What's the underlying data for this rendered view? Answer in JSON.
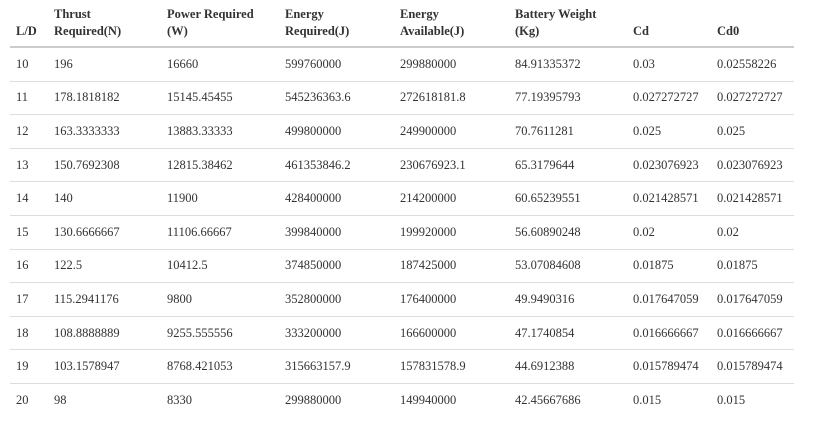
{
  "table": {
    "headers": [
      [
        "",
        "L/D"
      ],
      [
        "Thrust",
        "Required(N)"
      ],
      [
        "Power Required",
        "(W)"
      ],
      [
        "Energy",
        "Required(J)"
      ],
      [
        "Energy",
        "Available(J)"
      ],
      [
        "Battery Weight",
        "(Kg)"
      ],
      [
        "",
        "Cd"
      ],
      [
        "",
        "Cd0"
      ]
    ],
    "rows": [
      [
        "10",
        "196",
        "16660",
        "599760000",
        "299880000",
        "84.91335372",
        "0.03",
        "0.02558226"
      ],
      [
        "11",
        "178.1818182",
        "15145.45455",
        "545236363.6",
        "272618181.8",
        "77.19395793",
        "0.027272727",
        "0.027272727"
      ],
      [
        "12",
        "163.3333333",
        "13883.33333",
        "499800000",
        "249900000",
        "70.7611281",
        "0.025",
        "0.025"
      ],
      [
        "13",
        "150.7692308",
        "12815.38462",
        "461353846.2",
        "230676923.1",
        "65.3179644",
        "0.023076923",
        "0.023076923"
      ],
      [
        "14",
        "140",
        "11900",
        "428400000",
        "214200000",
        "60.65239551",
        "0.021428571",
        "0.021428571"
      ],
      [
        "15",
        "130.6666667",
        "11106.66667",
        "399840000",
        "199920000",
        "56.60890248",
        "0.02",
        "0.02"
      ],
      [
        "16",
        "122.5",
        "10412.5",
        "374850000",
        "187425000",
        "53.07084608",
        "0.01875",
        "0.01875"
      ],
      [
        "17",
        "115.2941176",
        "9800",
        "352800000",
        "176400000",
        "49.9490316",
        "0.017647059",
        "0.017647059"
      ],
      [
        "18",
        "108.8888889",
        "9255.555556",
        "333200000",
        "166600000",
        "47.1740854",
        "0.016666667",
        "0.016666667"
      ],
      [
        "19",
        "103.1578947",
        "8768.421053",
        "315663157.9",
        "157831578.9",
        "44.6912388",
        "0.015789474",
        "0.015789474"
      ],
      [
        "20",
        "98",
        "8330",
        "299880000",
        "149940000",
        "42.45667686",
        "0.015",
        "0.015"
      ]
    ]
  }
}
